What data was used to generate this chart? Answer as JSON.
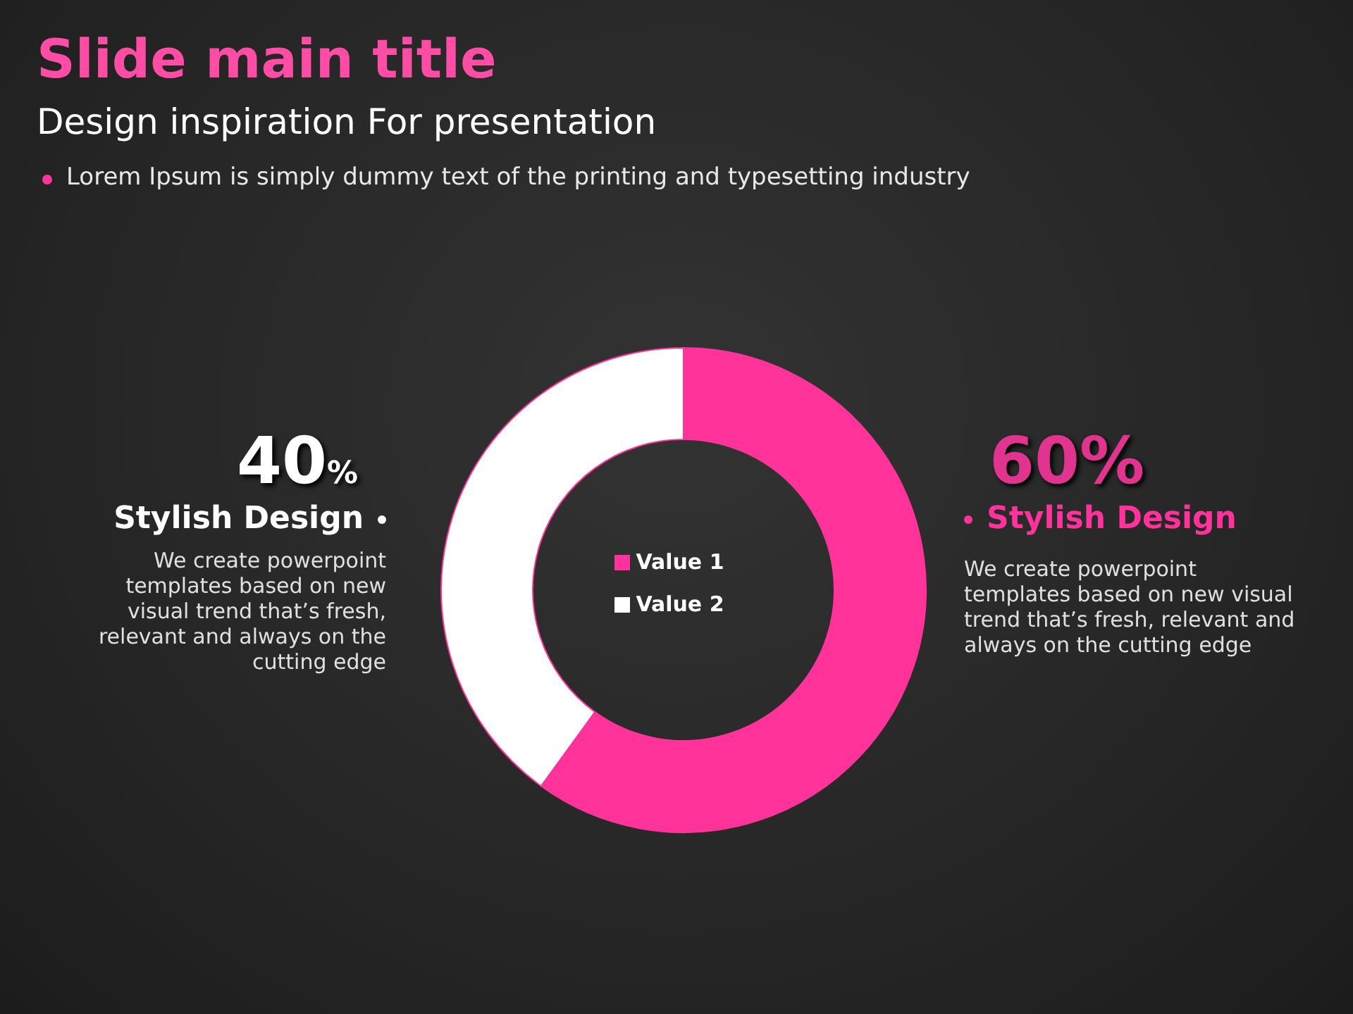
{
  "chart_data": {
    "type": "donut",
    "title": "Slide main title",
    "subtitle": "Design inspiration For presentation",
    "categories": [
      "Value 1",
      "Value 2"
    ],
    "values": [
      60,
      40
    ],
    "colors": [
      "#ff3399",
      "#ffffff"
    ],
    "value_labels": [
      "60%",
      "40%"
    ],
    "legend": "center",
    "annotations": [
      "Lorem Ipsum is simply dummy text of the printing and typesetting industry",
      "Stylish Design",
      "We create powerpoint templates based on new visual trend that’s fresh, relevant and always on the cutting edge",
      "Stylish Design",
      "We create powerpoint templates based on new visual trend that’s fresh, relevant and always on the cutting edge"
    ]
  }
}
